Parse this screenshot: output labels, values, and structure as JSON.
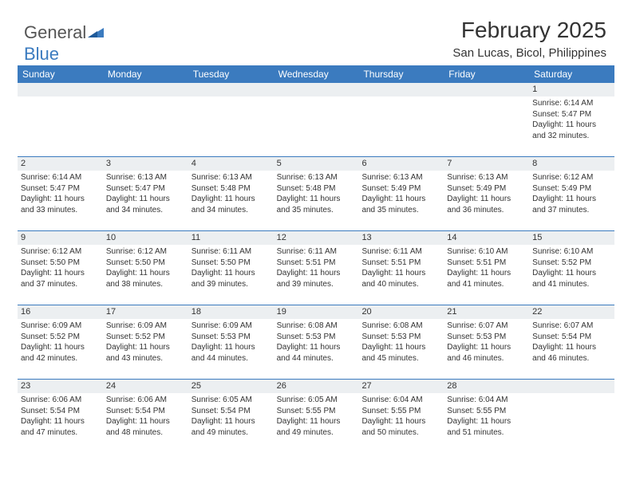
{
  "logo": {
    "part1": "General",
    "part2": "Blue"
  },
  "title": "February 2025",
  "location": "San Lucas, Bicol, Philippines",
  "header_bg": "#3b7bbf",
  "daynum_bg": "#eceff1",
  "day_names": [
    "Sunday",
    "Monday",
    "Tuesday",
    "Wednesday",
    "Thursday",
    "Friday",
    "Saturday"
  ],
  "weeks": [
    [
      null,
      null,
      null,
      null,
      null,
      null,
      {
        "n": "1",
        "sr": "6:14 AM",
        "ss": "5:47 PM",
        "dl": "11 hours and 32 minutes."
      }
    ],
    [
      {
        "n": "2",
        "sr": "6:14 AM",
        "ss": "5:47 PM",
        "dl": "11 hours and 33 minutes."
      },
      {
        "n": "3",
        "sr": "6:13 AM",
        "ss": "5:47 PM",
        "dl": "11 hours and 34 minutes."
      },
      {
        "n": "4",
        "sr": "6:13 AM",
        "ss": "5:48 PM",
        "dl": "11 hours and 34 minutes."
      },
      {
        "n": "5",
        "sr": "6:13 AM",
        "ss": "5:48 PM",
        "dl": "11 hours and 35 minutes."
      },
      {
        "n": "6",
        "sr": "6:13 AM",
        "ss": "5:49 PM",
        "dl": "11 hours and 35 minutes."
      },
      {
        "n": "7",
        "sr": "6:13 AM",
        "ss": "5:49 PM",
        "dl": "11 hours and 36 minutes."
      },
      {
        "n": "8",
        "sr": "6:12 AM",
        "ss": "5:49 PM",
        "dl": "11 hours and 37 minutes."
      }
    ],
    [
      {
        "n": "9",
        "sr": "6:12 AM",
        "ss": "5:50 PM",
        "dl": "11 hours and 37 minutes."
      },
      {
        "n": "10",
        "sr": "6:12 AM",
        "ss": "5:50 PM",
        "dl": "11 hours and 38 minutes."
      },
      {
        "n": "11",
        "sr": "6:11 AM",
        "ss": "5:50 PM",
        "dl": "11 hours and 39 minutes."
      },
      {
        "n": "12",
        "sr": "6:11 AM",
        "ss": "5:51 PM",
        "dl": "11 hours and 39 minutes."
      },
      {
        "n": "13",
        "sr": "6:11 AM",
        "ss": "5:51 PM",
        "dl": "11 hours and 40 minutes."
      },
      {
        "n": "14",
        "sr": "6:10 AM",
        "ss": "5:51 PM",
        "dl": "11 hours and 41 minutes."
      },
      {
        "n": "15",
        "sr": "6:10 AM",
        "ss": "5:52 PM",
        "dl": "11 hours and 41 minutes."
      }
    ],
    [
      {
        "n": "16",
        "sr": "6:09 AM",
        "ss": "5:52 PM",
        "dl": "11 hours and 42 minutes."
      },
      {
        "n": "17",
        "sr": "6:09 AM",
        "ss": "5:52 PM",
        "dl": "11 hours and 43 minutes."
      },
      {
        "n": "18",
        "sr": "6:09 AM",
        "ss": "5:53 PM",
        "dl": "11 hours and 44 minutes."
      },
      {
        "n": "19",
        "sr": "6:08 AM",
        "ss": "5:53 PM",
        "dl": "11 hours and 44 minutes."
      },
      {
        "n": "20",
        "sr": "6:08 AM",
        "ss": "5:53 PM",
        "dl": "11 hours and 45 minutes."
      },
      {
        "n": "21",
        "sr": "6:07 AM",
        "ss": "5:53 PM",
        "dl": "11 hours and 46 minutes."
      },
      {
        "n": "22",
        "sr": "6:07 AM",
        "ss": "5:54 PM",
        "dl": "11 hours and 46 minutes."
      }
    ],
    [
      {
        "n": "23",
        "sr": "6:06 AM",
        "ss": "5:54 PM",
        "dl": "11 hours and 47 minutes."
      },
      {
        "n": "24",
        "sr": "6:06 AM",
        "ss": "5:54 PM",
        "dl": "11 hours and 48 minutes."
      },
      {
        "n": "25",
        "sr": "6:05 AM",
        "ss": "5:54 PM",
        "dl": "11 hours and 49 minutes."
      },
      {
        "n": "26",
        "sr": "6:05 AM",
        "ss": "5:55 PM",
        "dl": "11 hours and 49 minutes."
      },
      {
        "n": "27",
        "sr": "6:04 AM",
        "ss": "5:55 PM",
        "dl": "11 hours and 50 minutes."
      },
      {
        "n": "28",
        "sr": "6:04 AM",
        "ss": "5:55 PM",
        "dl": "11 hours and 51 minutes."
      },
      null
    ]
  ],
  "labels": {
    "sunrise": "Sunrise:",
    "sunset": "Sunset:",
    "daylight": "Daylight:"
  }
}
